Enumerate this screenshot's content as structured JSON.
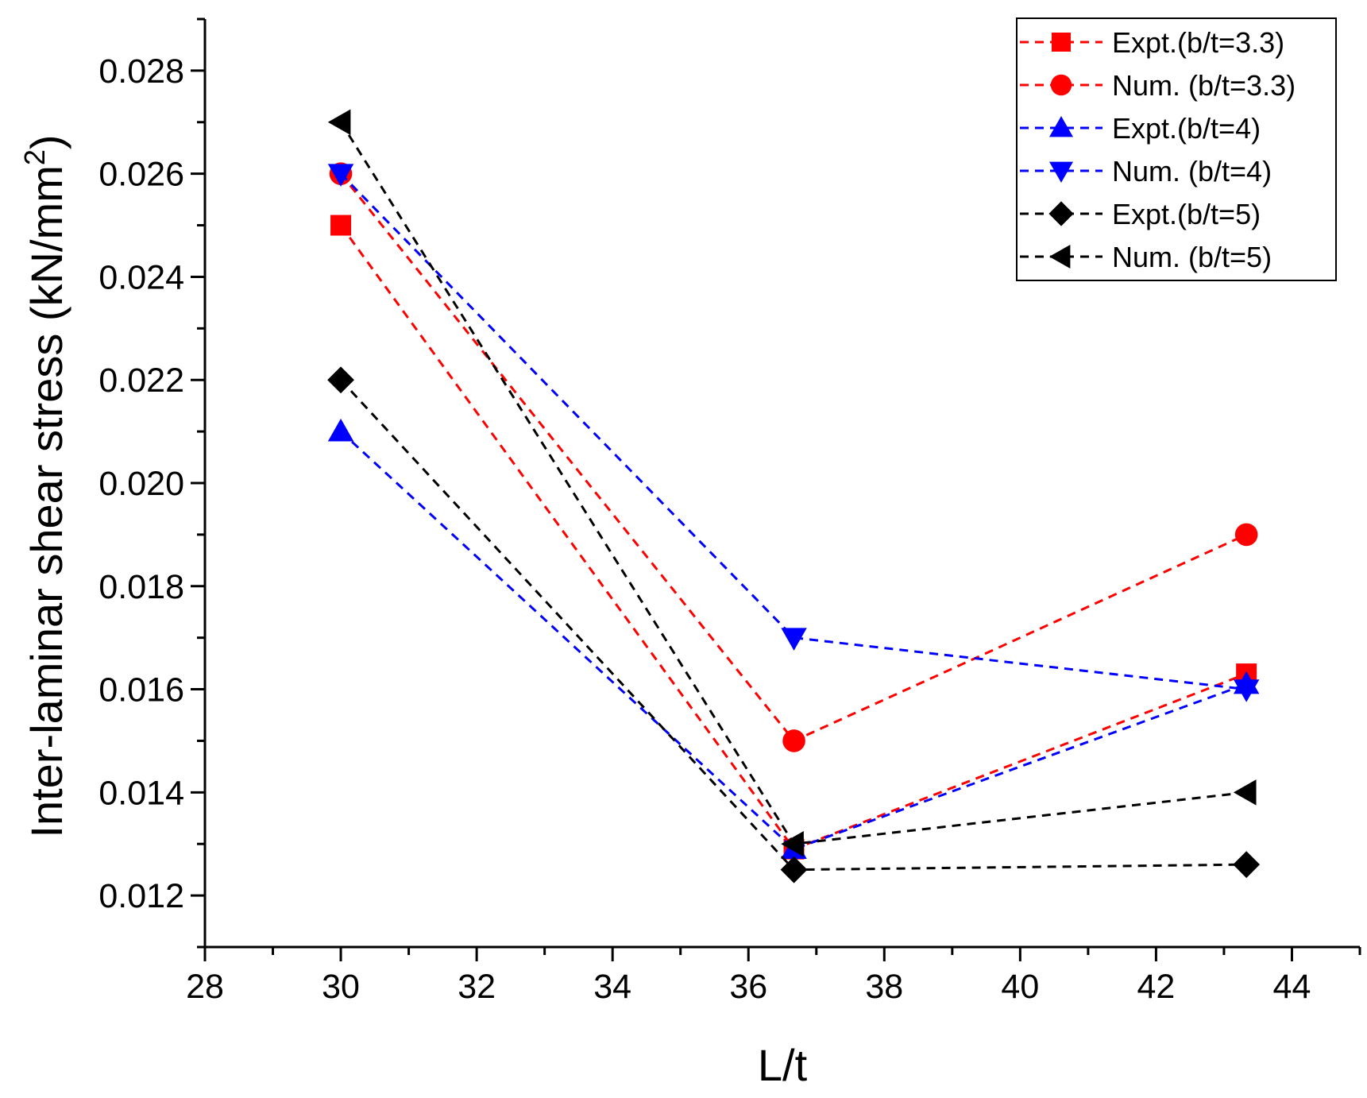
{
  "chart_data": {
    "type": "line",
    "title": "",
    "xlabel": "L/t",
    "ylabel": "Inter-laminar shear stress (kN/mm",
    "ylabel_superscript": "2",
    "ylabel_close": ")",
    "xlim": [
      28,
      45
    ],
    "ylim": [
      0.011,
      0.029
    ],
    "x_ticks": [
      "28",
      "30",
      "32",
      "34",
      "36",
      "38",
      "40",
      "42",
      "44"
    ],
    "y_ticks": [
      "0.012",
      "0.014",
      "0.016",
      "0.018",
      "0.020",
      "0.022",
      "0.024",
      "0.026",
      "0.028"
    ],
    "x": [
      30,
      36.67,
      43.33
    ],
    "series": [
      {
        "name": "Expt.(b/t=3.3)",
        "color": "#ff0000",
        "marker": "square",
        "values": [
          0.025,
          0.0129,
          0.0163
        ]
      },
      {
        "name": "Num. (b/t=3.3)",
        "color": "#ff0000",
        "marker": "circle",
        "values": [
          0.026,
          0.015,
          0.019
        ]
      },
      {
        "name": "Expt.(b/t=4)",
        "color": "#0000ff",
        "marker": "triangle-up",
        "values": [
          0.021,
          0.0129,
          0.0161
        ]
      },
      {
        "name": "Num. (b/t=4)",
        "color": "#0000ff",
        "marker": "triangle-down",
        "values": [
          0.026,
          0.017,
          0.016
        ]
      },
      {
        "name": "Expt.(b/t=5)",
        "color": "#000000",
        "marker": "diamond",
        "values": [
          0.022,
          0.0125,
          0.0126
        ]
      },
      {
        "name": "Num. (b/t=5)",
        "color": "#000000",
        "marker": "triangle-left",
        "values": [
          0.027,
          0.013,
          0.014
        ]
      }
    ],
    "grid": false,
    "legend_position": "top-right"
  }
}
